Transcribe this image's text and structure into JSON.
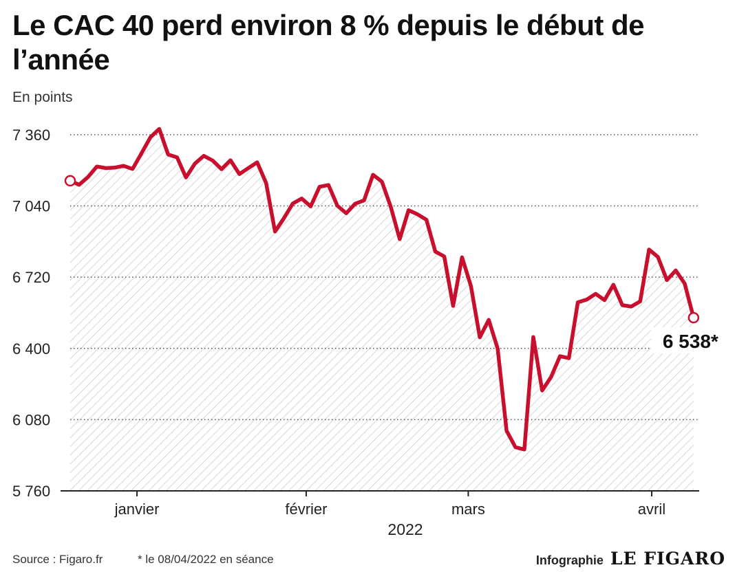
{
  "chart_data": {
    "type": "area",
    "title": "Le CAC 40 perd environ 8 % depuis le début de l’année",
    "ylabel": "En points",
    "xlabel": "2022",
    "ylim": [
      5760,
      7440
    ],
    "yticks": [
      5760,
      6080,
      6400,
      6720,
      7040,
      7360
    ],
    "ytick_labels": [
      "5 760",
      "6 080",
      "6 400",
      "6 720",
      "7 040",
      "7 360"
    ],
    "xlim": [
      0,
      69
    ],
    "xtick_labels": [
      {
        "label": "janvier",
        "x": 7.5
      },
      {
        "label": "février",
        "x": 26.5
      },
      {
        "label": "mars",
        "x": 44.7
      },
      {
        "label": "avril",
        "x": 65.3
      }
    ],
    "grid": true,
    "color": "#c8102e",
    "series": [
      {
        "values": [
          7153,
          7135,
          7170,
          7217,
          7210,
          7212,
          7220,
          7206,
          7276,
          7348,
          7386,
          7271,
          7258,
          7168,
          7230,
          7265,
          7244,
          7205,
          7245,
          7183,
          7210,
          7236,
          7143,
          6925,
          6985,
          7051,
          7073,
          7038,
          7126,
          7134,
          7041,
          7007,
          7050,
          7065,
          7180,
          7149,
          7036,
          6891,
          7021,
          7002,
          6978,
          6835,
          6813,
          6591,
          6809,
          6680,
          6450,
          6528,
          6400,
          6030,
          5956,
          5946,
          6451,
          6211,
          6272,
          6365,
          6356,
          6607,
          6619,
          6645,
          6617,
          6686,
          6594,
          6588,
          6611,
          6844,
          6811,
          6707,
          6750,
          6691,
          6538
        ]
      }
    ],
    "annotations": [
      {
        "x": 70,
        "y": 6538,
        "label": "6 538*"
      }
    ]
  },
  "footer": {
    "source": "Source : Figaro.fr",
    "note": "* le 08/04/2022 en séance",
    "credit_label": "Infographie",
    "brand": "LE FIGARO"
  }
}
